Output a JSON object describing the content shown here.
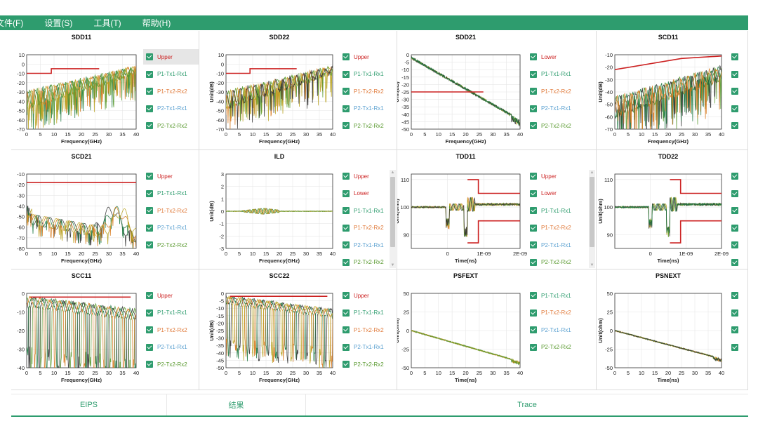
{
  "menu": {
    "items": [
      "文件(F)",
      "设置(S)",
      "工具(T)",
      "帮助(H)"
    ]
  },
  "colors": {
    "green": "#2e9c6e",
    "limit": "#cc2222",
    "grid": "#e6e6e6",
    "series": [
      "#1f7a43",
      "#d77a1e",
      "#b8a21e",
      "#5a9a30",
      "#333333"
    ]
  },
  "tabs": {
    "items": [
      "EIPS",
      "结果",
      "Trace"
    ]
  },
  "chart_data": [
    {
      "type": "line",
      "title": "SDD11",
      "xlabel": "Frequency(GHz)",
      "ylabel": "",
      "xlim": [
        0,
        40
      ],
      "ylim": [
        -70,
        10
      ],
      "xticks": [
        0,
        5,
        10,
        15,
        20,
        25,
        30,
        35,
        40
      ],
      "yticks": [
        10,
        0,
        -10,
        -20,
        -30,
        -40,
        -50,
        -60,
        -70
      ],
      "limits": [
        {
          "name": "Upper",
          "x": [
            0,
            9,
            9,
            26.5
          ],
          "y": [
            -10,
            -10,
            -5,
            -5
          ]
        }
      ],
      "series_style": "resonant",
      "series_range": {
        "x": [
          0,
          40
        ],
        "start": [
          -48,
          -30
        ],
        "end": [
          -10,
          -3
        ]
      },
      "legend": [
        {
          "label": "Upper",
          "color": "#cc2222",
          "selected": true
        },
        {
          "label": "P1-Tx1-Rx1",
          "color": "#2e9c6e"
        },
        {
          "label": "P1-Tx2-Rx2",
          "color": "#e07a3a"
        },
        {
          "label": "P2-Tx1-Rx1",
          "color": "#5aa0d0"
        },
        {
          "label": "P2-Tx2-Rx2",
          "color": "#5a9a30"
        }
      ]
    },
    {
      "type": "line",
      "title": "SDD22",
      "xlabel": "Frequency(GHz)",
      "ylabel": "Unit(dB)",
      "xlim": [
        0,
        40
      ],
      "ylim": [
        -70,
        10
      ],
      "xticks": [
        0,
        5,
        10,
        15,
        20,
        25,
        30,
        35,
        40
      ],
      "yticks": [
        10,
        0,
        -10,
        -20,
        -30,
        -40,
        -50,
        -60,
        -70
      ],
      "limits": [
        {
          "name": "Upper",
          "x": [
            0,
            9,
            9,
            26.5
          ],
          "y": [
            -10,
            -10,
            -5,
            -5
          ]
        }
      ],
      "series_style": "resonant",
      "series_range": {
        "x": [
          0,
          40
        ],
        "start": [
          -48,
          -30
        ],
        "end": [
          -10,
          -3
        ]
      },
      "legend": [
        {
          "label": "Upper",
          "color": "#cc2222"
        },
        {
          "label": "P1-Tx1-Rx1",
          "color": "#2e9c6e"
        },
        {
          "label": "P1-Tx2-Rx2",
          "color": "#e07a3a"
        },
        {
          "label": "P2-Tx1-Rx1",
          "color": "#5aa0d0"
        },
        {
          "label": "P2-Tx2-Rx2",
          "color": "#5a9a30"
        }
      ]
    },
    {
      "type": "line",
      "title": "SDD21",
      "xlabel": "Frequency(GHz)",
      "ylabel": "Unit(dB)",
      "xlim": [
        0,
        40
      ],
      "ylim": [
        -50,
        0
      ],
      "xticks": [
        0,
        5,
        10,
        15,
        20,
        25,
        30,
        35,
        40
      ],
      "yticks": [
        0,
        -5,
        -10,
        -15,
        -20,
        -25,
        -30,
        -35,
        -40,
        -45,
        -50
      ],
      "limits": [
        {
          "name": "Lower",
          "x": [
            0,
            26.5
          ],
          "y": [
            -25,
            -25
          ]
        }
      ],
      "series_style": "decay",
      "series_range": {
        "x": [
          0,
          40
        ],
        "start": [
          -2,
          -2
        ],
        "end": [
          -44,
          -44
        ]
      },
      "legend": [
        {
          "label": "Lower",
          "color": "#cc2222"
        },
        {
          "label": "P1-Tx1-Rx1",
          "color": "#2e9c6e"
        },
        {
          "label": "P1-Tx2-Rx2",
          "color": "#e07a3a"
        },
        {
          "label": "P2-Tx1-Rx1",
          "color": "#5aa0d0"
        },
        {
          "label": "P2-Tx2-Rx2",
          "color": "#5a9a30"
        }
      ]
    },
    {
      "type": "line",
      "title": "SCD11",
      "xlabel": "Frequency(GHz)",
      "ylabel": "Unit(dB)",
      "xlim": [
        0,
        40
      ],
      "ylim": [
        -70,
        -10
      ],
      "xticks": [
        0,
        5,
        10,
        15,
        20,
        25,
        30,
        35,
        40
      ],
      "yticks": [
        -10,
        -20,
        -30,
        -40,
        -50,
        -60,
        -70
      ],
      "limits": [
        {
          "name": "Upper",
          "x": [
            0,
            25,
            40
          ],
          "y": [
            -22,
            -13,
            -11
          ]
        }
      ],
      "series_style": "resonant",
      "series_range": {
        "x": [
          0,
          40
        ],
        "start": [
          -60,
          -45
        ],
        "end": [
          -30,
          -20
        ]
      },
      "legend": [
        {
          "label": "",
          "color": "#cc2222"
        },
        {
          "label": "",
          "color": "#2e9c6e"
        },
        {
          "label": "",
          "color": "#e07a3a"
        },
        {
          "label": "",
          "color": "#5aa0d0"
        },
        {
          "label": "",
          "color": "#5a9a30"
        }
      ]
    },
    {
      "type": "line",
      "title": "SCD21",
      "xlabel": "Frequency(GHz)",
      "ylabel": "",
      "xlim": [
        0,
        40
      ],
      "ylim": [
        -80,
        -10
      ],
      "xticks": [
        0,
        5,
        10,
        15,
        20,
        25,
        30,
        35,
        40
      ],
      "yticks": [
        -10,
        -20,
        -30,
        -40,
        -50,
        -60,
        -70,
        -80
      ],
      "limits": [
        {
          "name": "Upper",
          "x": [
            0,
            40
          ],
          "y": [
            -18,
            -18
          ]
        }
      ],
      "series_style": "hump",
      "series_range": {
        "x": [
          0,
          40
        ],
        "start": [
          -50,
          -30
        ],
        "end": [
          -75,
          -55
        ]
      },
      "legend": [
        {
          "label": "Upper",
          "color": "#cc2222"
        },
        {
          "label": "P1-Tx1-Rx1",
          "color": "#2e9c6e"
        },
        {
          "label": "P1-Tx2-Rx2",
          "color": "#e07a3a"
        },
        {
          "label": "P2-Tx1-Rx1",
          "color": "#5aa0d0"
        },
        {
          "label": "P2-Tx2-Rx2",
          "color": "#5a9a30"
        }
      ]
    },
    {
      "type": "line",
      "title": "ILD",
      "xlabel": "Frequency(GHz)",
      "ylabel": "Unit(dB)",
      "xlim": [
        0,
        40
      ],
      "ylim": [
        -3,
        3
      ],
      "xticks": [
        0,
        5,
        10,
        15,
        20,
        25,
        30,
        35,
        40
      ],
      "yticks": [
        3,
        2,
        1,
        0,
        -1,
        -2,
        -3
      ],
      "limits": [],
      "series_style": "flat",
      "series_range": {
        "x": [
          0,
          40
        ],
        "start": [
          0,
          0
        ],
        "end": [
          0,
          0
        ]
      },
      "legend": [
        {
          "label": "Upper",
          "color": "#cc2222"
        },
        {
          "label": "Lower",
          "color": "#cc2222"
        },
        {
          "label": "P1-Tx1-Rx1",
          "color": "#2e9c6e"
        },
        {
          "label": "P1-Tx2-Rx2",
          "color": "#e07a3a"
        },
        {
          "label": "P2-Tx1-Rx1",
          "color": "#5aa0d0"
        },
        {
          "label": "P2-Tx2-Rx2",
          "color": "#5a9a30"
        }
      ],
      "scrollbar": true
    },
    {
      "type": "line",
      "title": "TDD11",
      "xlabel": "Time(ns)",
      "ylabel": "Unit(ohm)",
      "xlim": [
        -1e-09,
        2e-09
      ],
      "ylim": [
        85,
        112
      ],
      "xticks": [
        0,
        1e-09,
        2e-09
      ],
      "xticklabels": [
        "0",
        "1E-09",
        "2E-09"
      ],
      "yticks": [
        110,
        100,
        90
      ],
      "limits": [
        {
          "name": "Upper",
          "x": [
            5.5e-10,
            8.5e-10,
            8.5e-10,
            2e-09
          ],
          "y": [
            110,
            110,
            105,
            105
          ]
        },
        {
          "name": "Lower",
          "x": [
            5.5e-10,
            8.5e-10,
            8.5e-10,
            2e-09
          ],
          "y": [
            87,
            87,
            95,
            95
          ]
        }
      ],
      "series_style": "tdr",
      "series_range": {
        "x": [
          -1e-09,
          2e-09
        ],
        "start": [
          100,
          100
        ],
        "end": [
          101,
          101
        ]
      },
      "legend": [
        {
          "label": "Upper",
          "color": "#cc2222"
        },
        {
          "label": "Lower",
          "color": "#cc2222"
        },
        {
          "label": "P1-Tx1-Rx1",
          "color": "#2e9c6e"
        },
        {
          "label": "P1-Tx2-Rx2",
          "color": "#e07a3a"
        },
        {
          "label": "P2-Tx1-Rx1",
          "color": "#5aa0d0"
        },
        {
          "label": "P2-Tx2-Rx2",
          "color": "#5a9a30"
        }
      ],
      "scrollbar": true
    },
    {
      "type": "line",
      "title": "TDD22",
      "xlabel": "Time(ns)",
      "ylabel": "Unit(ohm)",
      "xlim": [
        -1e-09,
        2e-09
      ],
      "ylim": [
        85,
        112
      ],
      "xticks": [
        0,
        1e-09,
        2e-09
      ],
      "xticklabels": [
        "0",
        "1E-09",
        "2E-09"
      ],
      "yticks": [
        110,
        100,
        90
      ],
      "limits": [
        {
          "name": "Upper",
          "x": [
            5.5e-10,
            8.5e-10,
            8.5e-10,
            2e-09
          ],
          "y": [
            110,
            110,
            105,
            105
          ]
        },
        {
          "name": "Lower",
          "x": [
            5.5e-10,
            8.5e-10,
            8.5e-10,
            2e-09
          ],
          "y": [
            87,
            87,
            95,
            95
          ]
        }
      ],
      "series_style": "tdr",
      "series_range": {
        "x": [
          -1e-09,
          2e-09
        ],
        "start": [
          100,
          100
        ],
        "end": [
          101,
          101
        ]
      },
      "legend": [
        {
          "label": "",
          "color": "#cc2222"
        },
        {
          "label": "",
          "color": "#cc2222"
        },
        {
          "label": "",
          "color": "#2e9c6e"
        },
        {
          "label": "",
          "color": "#e07a3a"
        },
        {
          "label": "",
          "color": "#5aa0d0"
        },
        {
          "label": "",
          "color": "#5a9a30"
        }
      ]
    },
    {
      "type": "line",
      "title": "SCC11",
      "xlabel": "Frequency(GHz)",
      "ylabel": "",
      "xlim": [
        0,
        40
      ],
      "ylim": [
        -40,
        0
      ],
      "xticks": [
        0,
        5,
        10,
        15,
        20,
        25,
        30,
        35,
        40
      ],
      "yticks": [
        0,
        -10,
        -20,
        -30,
        -40
      ],
      "limits": [
        {
          "name": "Upper",
          "x": [
            1.5,
            38
          ],
          "y": [
            -2,
            -2
          ]
        }
      ],
      "series_style": "dips",
      "series_range": {
        "x": [
          0,
          40
        ],
        "start": [
          -5,
          -5
        ],
        "end": [
          -12,
          -12
        ]
      },
      "legend": [
        {
          "label": "Upper",
          "color": "#cc2222"
        },
        {
          "label": "P1-Tx1-Rx1",
          "color": "#2e9c6e"
        },
        {
          "label": "P1-Tx2-Rx2",
          "color": "#e07a3a"
        },
        {
          "label": "P2-Tx1-Rx1",
          "color": "#5aa0d0"
        },
        {
          "label": "P2-Tx2-Rx2",
          "color": "#5a9a30"
        }
      ]
    },
    {
      "type": "line",
      "title": "SCC22",
      "xlabel": "Frequency(GHz)",
      "ylabel": "Unit(dB)",
      "xlim": [
        0,
        40
      ],
      "ylim": [
        -50,
        0
      ],
      "xticks": [
        0,
        5,
        10,
        15,
        20,
        25,
        30,
        35,
        40
      ],
      "yticks": [
        0,
        -5,
        -10,
        -15,
        -20,
        -25,
        -30,
        -35,
        -40,
        -45,
        -50
      ],
      "limits": [
        {
          "name": "Upper",
          "x": [
            1.5,
            38
          ],
          "y": [
            -2,
            -2
          ]
        }
      ],
      "series_style": "dips",
      "series_range": {
        "x": [
          0,
          40
        ],
        "start": [
          -5,
          -5
        ],
        "end": [
          -14,
          -14
        ]
      },
      "legend": [
        {
          "label": "Upper",
          "color": "#cc2222"
        },
        {
          "label": "P1-Tx1-Rx1",
          "color": "#2e9c6e"
        },
        {
          "label": "P1-Tx2-Rx2",
          "color": "#e07a3a"
        },
        {
          "label": "P2-Tx1-Rx1",
          "color": "#5aa0d0"
        },
        {
          "label": "P2-Tx2-Rx2",
          "color": "#5a9a30"
        }
      ]
    },
    {
      "type": "line",
      "title": "PSFEXT",
      "xlabel": "Time(ns)",
      "ylabel": "Unit(ohm)",
      "xlim": [
        0,
        40
      ],
      "ylim": [
        -50,
        50
      ],
      "xticks": [
        0,
        5,
        10,
        15,
        20,
        25,
        30,
        35,
        40
      ],
      "yticks": [
        50,
        25,
        0,
        -25,
        -50
      ],
      "limits": [],
      "series_style": "decay",
      "series_range": {
        "x": [
          0,
          40
        ],
        "start": [
          0,
          0
        ],
        "end": [
          -42,
          -42
        ]
      },
      "legend": [
        {
          "label": "P1-Tx1-Rx1",
          "color": "#2e9c6e"
        },
        {
          "label": "P1-Tx2-Rx2",
          "color": "#e07a3a"
        },
        {
          "label": "P2-Tx1-Rx1",
          "color": "#5aa0d0"
        },
        {
          "label": "P2-Tx2-Rx2",
          "color": "#5a9a30"
        }
      ]
    },
    {
      "type": "line",
      "title": "PSNEXT",
      "xlabel": "Time(ns)",
      "ylabel": "Unit(ohm)",
      "xlim": [
        0,
        40
      ],
      "ylim": [
        -50,
        50
      ],
      "xticks": [
        0,
        5,
        10,
        15,
        20,
        25,
        30,
        35,
        40
      ],
      "yticks": [
        50,
        25,
        0,
        -25,
        -50
      ],
      "limits": [],
      "series_style": "decay",
      "series_range": {
        "x": [
          0,
          40
        ],
        "start": [
          0,
          0
        ],
        "end": [
          -38,
          -38
        ]
      },
      "legend": [
        {
          "label": "",
          "color": "#2e9c6e"
        },
        {
          "label": "",
          "color": "#e07a3a"
        },
        {
          "label": "",
          "color": "#5aa0d0"
        },
        {
          "label": "",
          "color": "#5a9a30"
        }
      ]
    }
  ]
}
